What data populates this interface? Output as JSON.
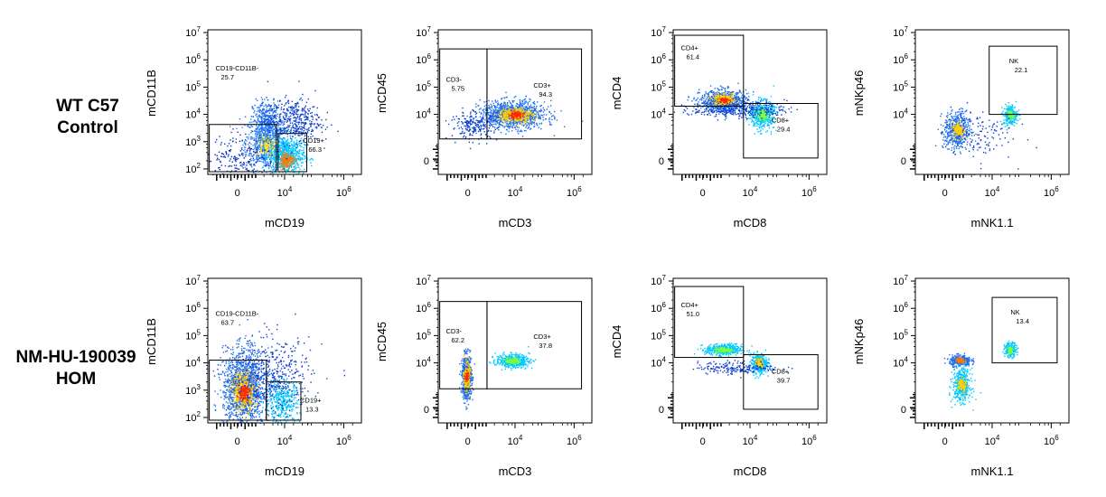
{
  "rows": [
    {
      "label_line1": "WT C57",
      "label_line2": "Control"
    },
    {
      "label_line1": "NM-HU-190039",
      "label_line2": "HOM"
    }
  ],
  "tick_labels": {
    "y_tick_labels": [
      "10^7",
      "10^6",
      "10^5",
      "10^4",
      "10^3",
      "10^2"
    ],
    "x_tick_labels": [
      "0",
      "10^4",
      "10^6"
    ]
  },
  "chart_data": [
    {
      "type": "scatter",
      "row": 0,
      "col": 0,
      "xlabel": "mCD19",
      "ylabel": "mCD11B",
      "scale": "biexponential",
      "gates": [
        {
          "name": "CD19-CD11B-",
          "percent": "25.7"
        },
        {
          "name": "CD19+",
          "percent": "66.3"
        }
      ],
      "populations": [
        {
          "x": 3.35,
          "y": 3.0,
          "sx": 0.35,
          "sy": 0.5,
          "n": 700,
          "color": "#2e86ff"
        },
        {
          "x": 3.35,
          "y": 2.9,
          "sx": 0.15,
          "sy": 0.2,
          "n": 120,
          "color": "#ffe000"
        },
        {
          "x": 3.4,
          "y": 3.8,
          "sx": 0.25,
          "sy": 0.35,
          "n": 300,
          "color": "#1f6ef0"
        },
        {
          "x": 4.05,
          "y": 2.5,
          "sx": 0.3,
          "sy": 0.35,
          "n": 700,
          "color": "#00c8ff"
        },
        {
          "x": 4.05,
          "y": 2.35,
          "sx": 0.13,
          "sy": 0.15,
          "n": 160,
          "color": "#ff7a00"
        },
        {
          "x": 4.3,
          "y": 3.8,
          "sx": 0.45,
          "sy": 0.4,
          "n": 400,
          "color": "#1040d0"
        },
        {
          "x": 2.5,
          "y": 2.5,
          "sx": 0.6,
          "sy": 0.4,
          "n": 200,
          "color": "#0a2fc0"
        }
      ]
    },
    {
      "type": "scatter",
      "row": 0,
      "col": 1,
      "xlabel": "mCD3",
      "ylabel": "mCD45",
      "scale": "biexponential",
      "gates": [
        {
          "name": "CD3-",
          "percent": "5.75"
        },
        {
          "name": "CD3+",
          "percent": "94.3"
        }
      ],
      "populations": [
        {
          "x": 3.9,
          "y": 4.0,
          "sx": 0.55,
          "sy": 0.25,
          "n": 1100,
          "color": "#1f6ef0"
        },
        {
          "x": 4.0,
          "y": 4.0,
          "sx": 0.3,
          "sy": 0.13,
          "n": 350,
          "color": "#ffd000"
        },
        {
          "x": 4.0,
          "y": 4.0,
          "sx": 0.12,
          "sy": 0.06,
          "n": 120,
          "color": "#ff2a00"
        },
        {
          "x": 2.6,
          "y": 3.6,
          "sx": 0.4,
          "sy": 0.25,
          "n": 200,
          "color": "#1040d0"
        }
      ]
    },
    {
      "type": "scatter",
      "row": 0,
      "col": 2,
      "xlabel": "mCD8",
      "ylabel": "mCD4",
      "scale": "biexponential",
      "gates": [
        {
          "name": "CD4+",
          "percent": "61.4"
        },
        {
          "name": "CD8+",
          "percent": "29.4"
        }
      ],
      "populations": [
        {
          "x": 3.1,
          "y": 4.5,
          "sx": 0.4,
          "sy": 0.2,
          "n": 800,
          "color": "#1f6ef0"
        },
        {
          "x": 3.1,
          "y": 4.55,
          "sx": 0.2,
          "sy": 0.1,
          "n": 250,
          "color": "#ffd000"
        },
        {
          "x": 3.1,
          "y": 4.55,
          "sx": 0.08,
          "sy": 0.05,
          "n": 80,
          "color": "#ff2a00"
        },
        {
          "x": 4.4,
          "y": 4.0,
          "sx": 0.2,
          "sy": 0.25,
          "n": 500,
          "color": "#00c8ff"
        },
        {
          "x": 4.4,
          "y": 4.0,
          "sx": 0.1,
          "sy": 0.1,
          "n": 120,
          "color": "#7cff40"
        },
        {
          "x": 3.6,
          "y": 4.2,
          "sx": 0.8,
          "sy": 0.15,
          "n": 300,
          "color": "#1040d0"
        }
      ]
    },
    {
      "type": "scatter",
      "row": 0,
      "col": 3,
      "xlabel": "mNK1.1",
      "ylabel": "mNKp46",
      "scale": "biexponential",
      "gates": [
        {
          "name": "NK",
          "percent": "22.1"
        }
      ],
      "populations": [
        {
          "x": 2.8,
          "y": 3.4,
          "sx": 0.22,
          "sy": 0.35,
          "n": 500,
          "color": "#1f6ef0"
        },
        {
          "x": 2.85,
          "y": 3.45,
          "sx": 0.1,
          "sy": 0.15,
          "n": 140,
          "color": "#ffd000"
        },
        {
          "x": 4.6,
          "y": 4.0,
          "sx": 0.12,
          "sy": 0.18,
          "n": 250,
          "color": "#00c8ff"
        },
        {
          "x": 4.6,
          "y": 4.0,
          "sx": 0.05,
          "sy": 0.08,
          "n": 60,
          "color": "#7cff40"
        },
        {
          "x": 3.5,
          "y": 3.3,
          "sx": 0.6,
          "sy": 0.5,
          "n": 120,
          "color": "#1040d0"
        }
      ]
    },
    {
      "type": "scatter",
      "row": 1,
      "col": 0,
      "xlabel": "mCD19",
      "ylabel": "mCD11B",
      "scale": "biexponential",
      "gates": [
        {
          "name": "CD19-CD11B-",
          "percent": "63.7"
        },
        {
          "name": "CD19+",
          "percent": "13.3"
        }
      ],
      "populations": [
        {
          "x": 2.6,
          "y": 3.1,
          "sx": 0.35,
          "sy": 0.7,
          "n": 1300,
          "color": "#1f6ef0"
        },
        {
          "x": 2.6,
          "y": 3.0,
          "sx": 0.2,
          "sy": 0.35,
          "n": 400,
          "color": "#ffd000"
        },
        {
          "x": 2.6,
          "y": 2.95,
          "sx": 0.1,
          "sy": 0.15,
          "n": 150,
          "color": "#ff2a00"
        },
        {
          "x": 3.9,
          "y": 2.6,
          "sx": 0.3,
          "sy": 0.4,
          "n": 350,
          "color": "#00c8ff"
        },
        {
          "x": 3.5,
          "y": 3.5,
          "sx": 0.7,
          "sy": 0.7,
          "n": 500,
          "color": "#1040d0"
        }
      ]
    },
    {
      "type": "scatter",
      "row": 1,
      "col": 1,
      "xlabel": "mCD3",
      "ylabel": "mCD45",
      "scale": "biexponential",
      "gates": [
        {
          "name": "CD3-",
          "percent": "62.2"
        },
        {
          "name": "CD3+",
          "percent": "37.8"
        }
      ],
      "populations": [
        {
          "x": 2.35,
          "y": 3.5,
          "sx": 0.08,
          "sy": 0.4,
          "n": 700,
          "color": "#1f6ef0"
        },
        {
          "x": 2.35,
          "y": 3.5,
          "sx": 0.05,
          "sy": 0.25,
          "n": 200,
          "color": "#ffd000"
        },
        {
          "x": 2.35,
          "y": 3.5,
          "sx": 0.03,
          "sy": 0.1,
          "n": 60,
          "color": "#ff2a00"
        },
        {
          "x": 3.9,
          "y": 4.1,
          "sx": 0.28,
          "sy": 0.12,
          "n": 450,
          "color": "#00c8ff"
        },
        {
          "x": 3.9,
          "y": 4.1,
          "sx": 0.12,
          "sy": 0.06,
          "n": 100,
          "color": "#7cff40"
        }
      ]
    },
    {
      "type": "scatter",
      "row": 1,
      "col": 2,
      "xlabel": "mCD8",
      "ylabel": "mCD4",
      "scale": "biexponential",
      "gates": [
        {
          "name": "CD4+",
          "percent": "51.0"
        },
        {
          "name": "CD8+",
          "percent": "39.7"
        }
      ],
      "populations": [
        {
          "x": 3.1,
          "y": 4.5,
          "sx": 0.3,
          "sy": 0.1,
          "n": 500,
          "color": "#00c8ff"
        },
        {
          "x": 3.1,
          "y": 4.5,
          "sx": 0.15,
          "sy": 0.05,
          "n": 120,
          "color": "#7cff40"
        },
        {
          "x": 4.3,
          "y": 4.0,
          "sx": 0.13,
          "sy": 0.18,
          "n": 400,
          "color": "#00c8ff"
        },
        {
          "x": 4.3,
          "y": 4.0,
          "sx": 0.06,
          "sy": 0.08,
          "n": 100,
          "color": "#ffd000"
        },
        {
          "x": 3.6,
          "y": 3.85,
          "sx": 0.7,
          "sy": 0.12,
          "n": 200,
          "color": "#1040d0"
        }
      ]
    },
    {
      "type": "scatter",
      "row": 1,
      "col": 3,
      "xlabel": "mNK1.1",
      "ylabel": "mNKp46",
      "scale": "biexponential",
      "gates": [
        {
          "name": "NK",
          "percent": "13.4"
        }
      ],
      "populations": [
        {
          "x": 2.9,
          "y": 4.1,
          "sx": 0.18,
          "sy": 0.1,
          "n": 300,
          "color": "#1f6ef0"
        },
        {
          "x": 2.9,
          "y": 4.1,
          "sx": 0.08,
          "sy": 0.05,
          "n": 90,
          "color": "#ff7a00"
        },
        {
          "x": 2.95,
          "y": 3.2,
          "sx": 0.15,
          "sy": 0.3,
          "n": 450,
          "color": "#00c8ff"
        },
        {
          "x": 2.95,
          "y": 3.2,
          "sx": 0.07,
          "sy": 0.12,
          "n": 110,
          "color": "#ffd000"
        },
        {
          "x": 4.6,
          "y": 4.5,
          "sx": 0.1,
          "sy": 0.13,
          "n": 220,
          "color": "#00c8ff"
        },
        {
          "x": 4.6,
          "y": 4.5,
          "sx": 0.04,
          "sy": 0.06,
          "n": 60,
          "color": "#7cff40"
        }
      ]
    }
  ]
}
